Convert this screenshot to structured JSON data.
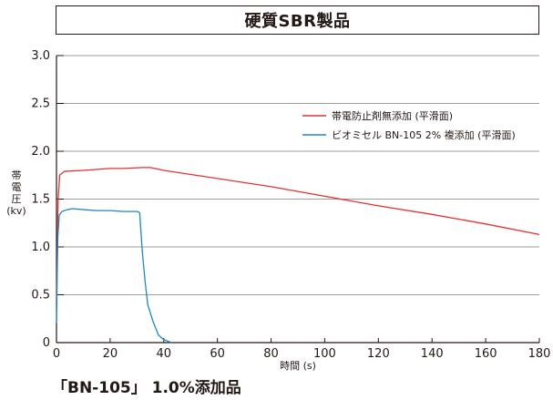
{
  "title": "硬質SBR製品",
  "caption": "「BN-105」 1.0%添加品",
  "chart_data": {
    "type": "line",
    "title": "硬質SBR製品",
    "ylabel": [
      "帯",
      "電",
      "圧",
      "(kv)"
    ],
    "xlabel": "時間 (s)",
    "xlim": [
      0,
      180
    ],
    "ylim": [
      0,
      3.0
    ],
    "x_ticks": [
      "0",
      "20",
      "40",
      "60",
      "80",
      "100",
      "120",
      "140",
      "160",
      "180"
    ],
    "y_ticks": [
      "0",
      "0.5",
      "1.0",
      "1.5",
      "2.0",
      "2.5",
      "3.0"
    ],
    "grid": true,
    "legend_position": "upper-right",
    "series": [
      {
        "name": "帯電防止剤無添加 (平滑面)",
        "color": "#e83030",
        "points": [
          [
            0,
            0.4
          ],
          [
            0.6,
            1.5
          ],
          [
            1.2,
            1.75
          ],
          [
            3,
            1.79
          ],
          [
            10,
            1.8
          ],
          [
            20,
            1.82
          ],
          [
            25,
            1.82
          ],
          [
            32,
            1.83
          ],
          [
            35,
            1.83
          ],
          [
            40,
            1.8
          ],
          [
            80,
            1.63
          ],
          [
            100,
            1.53
          ],
          [
            120,
            1.43
          ],
          [
            140,
            1.34
          ],
          [
            160,
            1.24
          ],
          [
            180,
            1.13
          ]
        ]
      },
      {
        "name": "ビオミセル BN-105 2% 複添加 (平滑面)",
        "color": "#1e88c8",
        "points": [
          [
            0,
            0.2
          ],
          [
            0.5,
            1.1
          ],
          [
            1,
            1.33
          ],
          [
            2,
            1.37
          ],
          [
            4,
            1.39
          ],
          [
            6,
            1.4
          ],
          [
            10,
            1.39
          ],
          [
            15,
            1.38
          ],
          [
            20,
            1.38
          ],
          [
            25,
            1.37
          ],
          [
            30,
            1.37
          ],
          [
            31,
            1.36
          ],
          [
            32,
            0.95
          ],
          [
            33,
            0.65
          ],
          [
            34,
            0.4
          ],
          [
            36,
            0.22
          ],
          [
            38,
            0.08
          ],
          [
            40,
            0.03
          ],
          [
            42,
            0.01
          ],
          [
            43,
            0.0
          ]
        ]
      }
    ]
  }
}
